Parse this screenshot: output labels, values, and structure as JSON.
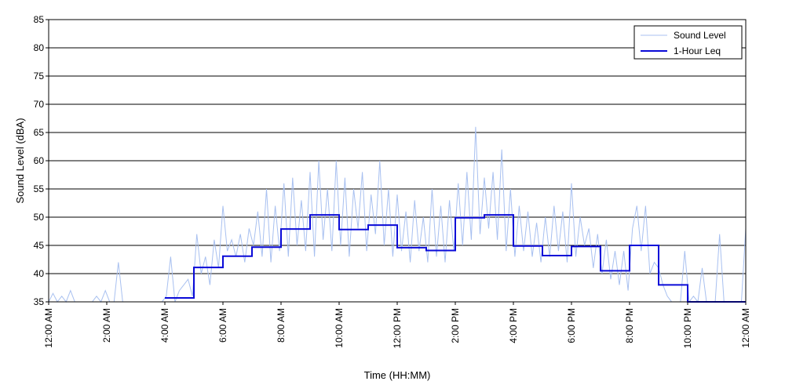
{
  "chart_data": {
    "type": "line",
    "xlabel": "Time (HH:MM)",
    "ylabel": "Sound Level (dBA)",
    "ylim": [
      35,
      85
    ],
    "yticks": [
      35,
      40,
      45,
      50,
      55,
      60,
      65,
      70,
      75,
      80,
      85
    ],
    "xlim": [
      0,
      24
    ],
    "xticks": [
      {
        "value": 0,
        "label": "12:00 AM"
      },
      {
        "value": 2,
        "label": "2:00 AM"
      },
      {
        "value": 4,
        "label": "4:00 AM"
      },
      {
        "value": 6,
        "label": "6:00 AM"
      },
      {
        "value": 8,
        "label": "8:00 AM"
      },
      {
        "value": 10,
        "label": "10:00 AM"
      },
      {
        "value": 12,
        "label": "12:00 PM"
      },
      {
        "value": 14,
        "label": "2:00 PM"
      },
      {
        "value": 16,
        "label": "4:00 PM"
      },
      {
        "value": 18,
        "label": "6:00 PM"
      },
      {
        "value": 20,
        "label": "8:00 PM"
      },
      {
        "value": 22,
        "label": "10:00 PM"
      },
      {
        "value": 24,
        "label": "12:00 AM"
      }
    ],
    "grid": "horizontal",
    "legend_position": "top-right",
    "series": [
      {
        "name": "Sound Level",
        "color": "#a8c0f0",
        "style": "thin",
        "x_hours": [
          0.0,
          0.15,
          0.3,
          0.45,
          0.6,
          0.75,
          0.9,
          1.05,
          1.2,
          1.35,
          1.5,
          1.65,
          1.8,
          1.95,
          2.1,
          2.25,
          2.4,
          2.55,
          2.7,
          2.85,
          3.0,
          3.15,
          3.3,
          3.45,
          3.6,
          3.75,
          3.9,
          4.05,
          4.2,
          4.35,
          4.5,
          4.65,
          4.8,
          4.95,
          5.1,
          5.25,
          5.4,
          5.55,
          5.7,
          5.85,
          6.0,
          6.15,
          6.3,
          6.45,
          6.6,
          6.75,
          6.9,
          7.05,
          7.2,
          7.35,
          7.5,
          7.65,
          7.8,
          7.95,
          8.1,
          8.25,
          8.4,
          8.55,
          8.7,
          8.85,
          9.0,
          9.15,
          9.3,
          9.45,
          9.6,
          9.75,
          9.9,
          10.05,
          10.2,
          10.35,
          10.5,
          10.65,
          10.8,
          10.95,
          11.1,
          11.25,
          11.4,
          11.55,
          11.7,
          11.85,
          12.0,
          12.15,
          12.3,
          12.45,
          12.6,
          12.75,
          12.9,
          13.05,
          13.2,
          13.35,
          13.5,
          13.65,
          13.8,
          13.95,
          14.1,
          14.25,
          14.4,
          14.55,
          14.7,
          14.85,
          15.0,
          15.15,
          15.3,
          15.45,
          15.6,
          15.75,
          15.9,
          16.05,
          16.2,
          16.35,
          16.5,
          16.65,
          16.8,
          16.95,
          17.1,
          17.25,
          17.4,
          17.55,
          17.7,
          17.85,
          18.0,
          18.15,
          18.3,
          18.45,
          18.6,
          18.75,
          18.9,
          19.05,
          19.2,
          19.35,
          19.5,
          19.65,
          19.8,
          19.95,
          20.1,
          20.25,
          20.4,
          20.55,
          20.7,
          20.85,
          21.0,
          21.15,
          21.3,
          21.45,
          21.6,
          21.75,
          21.9,
          22.05,
          22.2,
          22.35,
          22.5,
          22.65,
          22.8,
          22.95,
          23.1,
          23.25,
          23.4,
          23.55,
          23.7,
          23.85,
          24.0
        ],
        "values": [
          35,
          36.5,
          35,
          36,
          35,
          37,
          35,
          35,
          35,
          35,
          35,
          36,
          35,
          37,
          35,
          35,
          42,
          35,
          35,
          35,
          35,
          35,
          35,
          35,
          35,
          35,
          35,
          36,
          43,
          35,
          37,
          38,
          39,
          36,
          47,
          40,
          43,
          38,
          46,
          41,
          52,
          44,
          46,
          43,
          47,
          42,
          48,
          45,
          51,
          43,
          55,
          42,
          52,
          44,
          56,
          43,
          57,
          45,
          53,
          44,
          58,
          43,
          60,
          46,
          55,
          44,
          60,
          45,
          57,
          43,
          55,
          48,
          58,
          44,
          54,
          47,
          60,
          45,
          55,
          43,
          54,
          44,
          51,
          42,
          53,
          44,
          50,
          42,
          55,
          43,
          52,
          42,
          53,
          44,
          56,
          45,
          58,
          46,
          66,
          47,
          57,
          48,
          58,
          46,
          62,
          44,
          55,
          43,
          52,
          44,
          51,
          43,
          49,
          42,
          50,
          43,
          52,
          44,
          51,
          42,
          56,
          43,
          50,
          45,
          48,
          41,
          47,
          40,
          46,
          39,
          44,
          38,
          44,
          37,
          48,
          52,
          44,
          52,
          40,
          42,
          41,
          38,
          36,
          35,
          35,
          35,
          44,
          35,
          36,
          35,
          41,
          35,
          35,
          35,
          47,
          35,
          35,
          35,
          35,
          35,
          48
        ]
      },
      {
        "name": "1-Hour Leq",
        "color": "#0a0ad8",
        "style": "step",
        "hours": [
          0,
          1,
          2,
          3,
          4,
          5,
          6,
          7,
          8,
          9,
          10,
          11,
          12,
          13,
          14,
          15,
          16,
          17,
          18,
          19,
          20,
          21,
          22,
          23
        ],
        "values": [
          null,
          null,
          null,
          null,
          35.7,
          41.1,
          43.1,
          44.7,
          47.9,
          50.4,
          47.8,
          48.6,
          44.6,
          44.1,
          49.9,
          50.4,
          44.9,
          43.2,
          44.8,
          40.5,
          45.0,
          38.0,
          34.5,
          35.0
        ]
      }
    ]
  }
}
